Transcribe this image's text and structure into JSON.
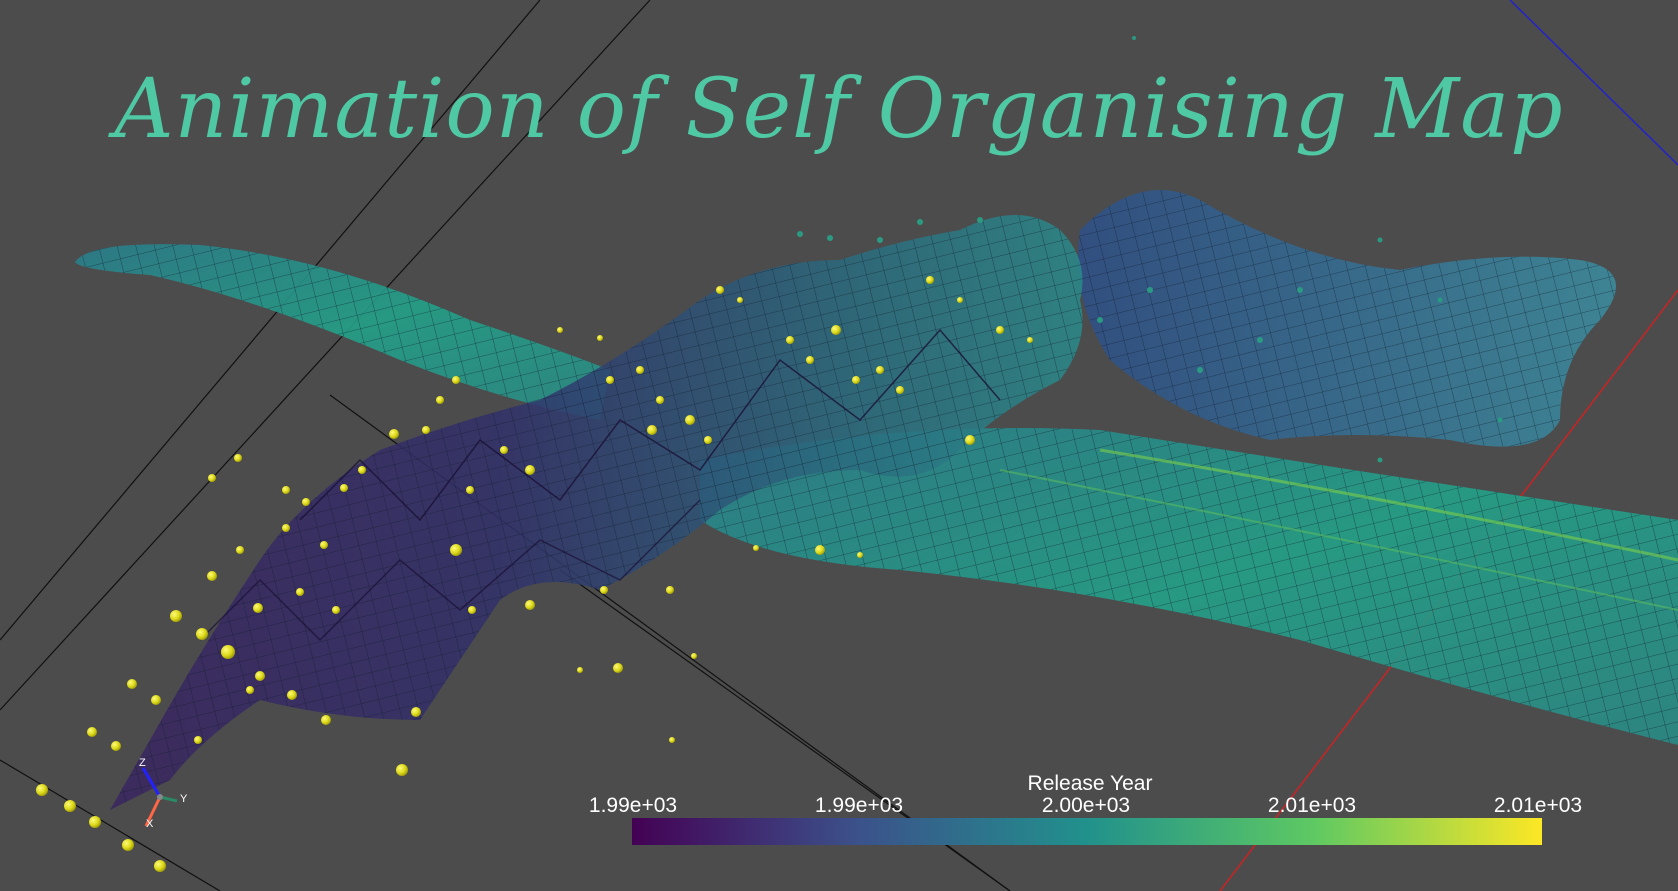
{
  "title": "Animation of Self Organising Map",
  "colorbar": {
    "title": "Release Year",
    "ticks": [
      "1.99e+03",
      "1.99e+03",
      "2.00e+03",
      "2.01e+03",
      "2.01e+03"
    ],
    "colors": [
      "#440154",
      "#3b528b",
      "#21918c",
      "#5ec962",
      "#fde725"
    ]
  },
  "axes": {
    "x": "X",
    "y": "Y",
    "z": "Z"
  },
  "colors": {
    "background": "#4c4c4c",
    "title": "#4fc8a4",
    "points": "#e2e21c"
  }
}
